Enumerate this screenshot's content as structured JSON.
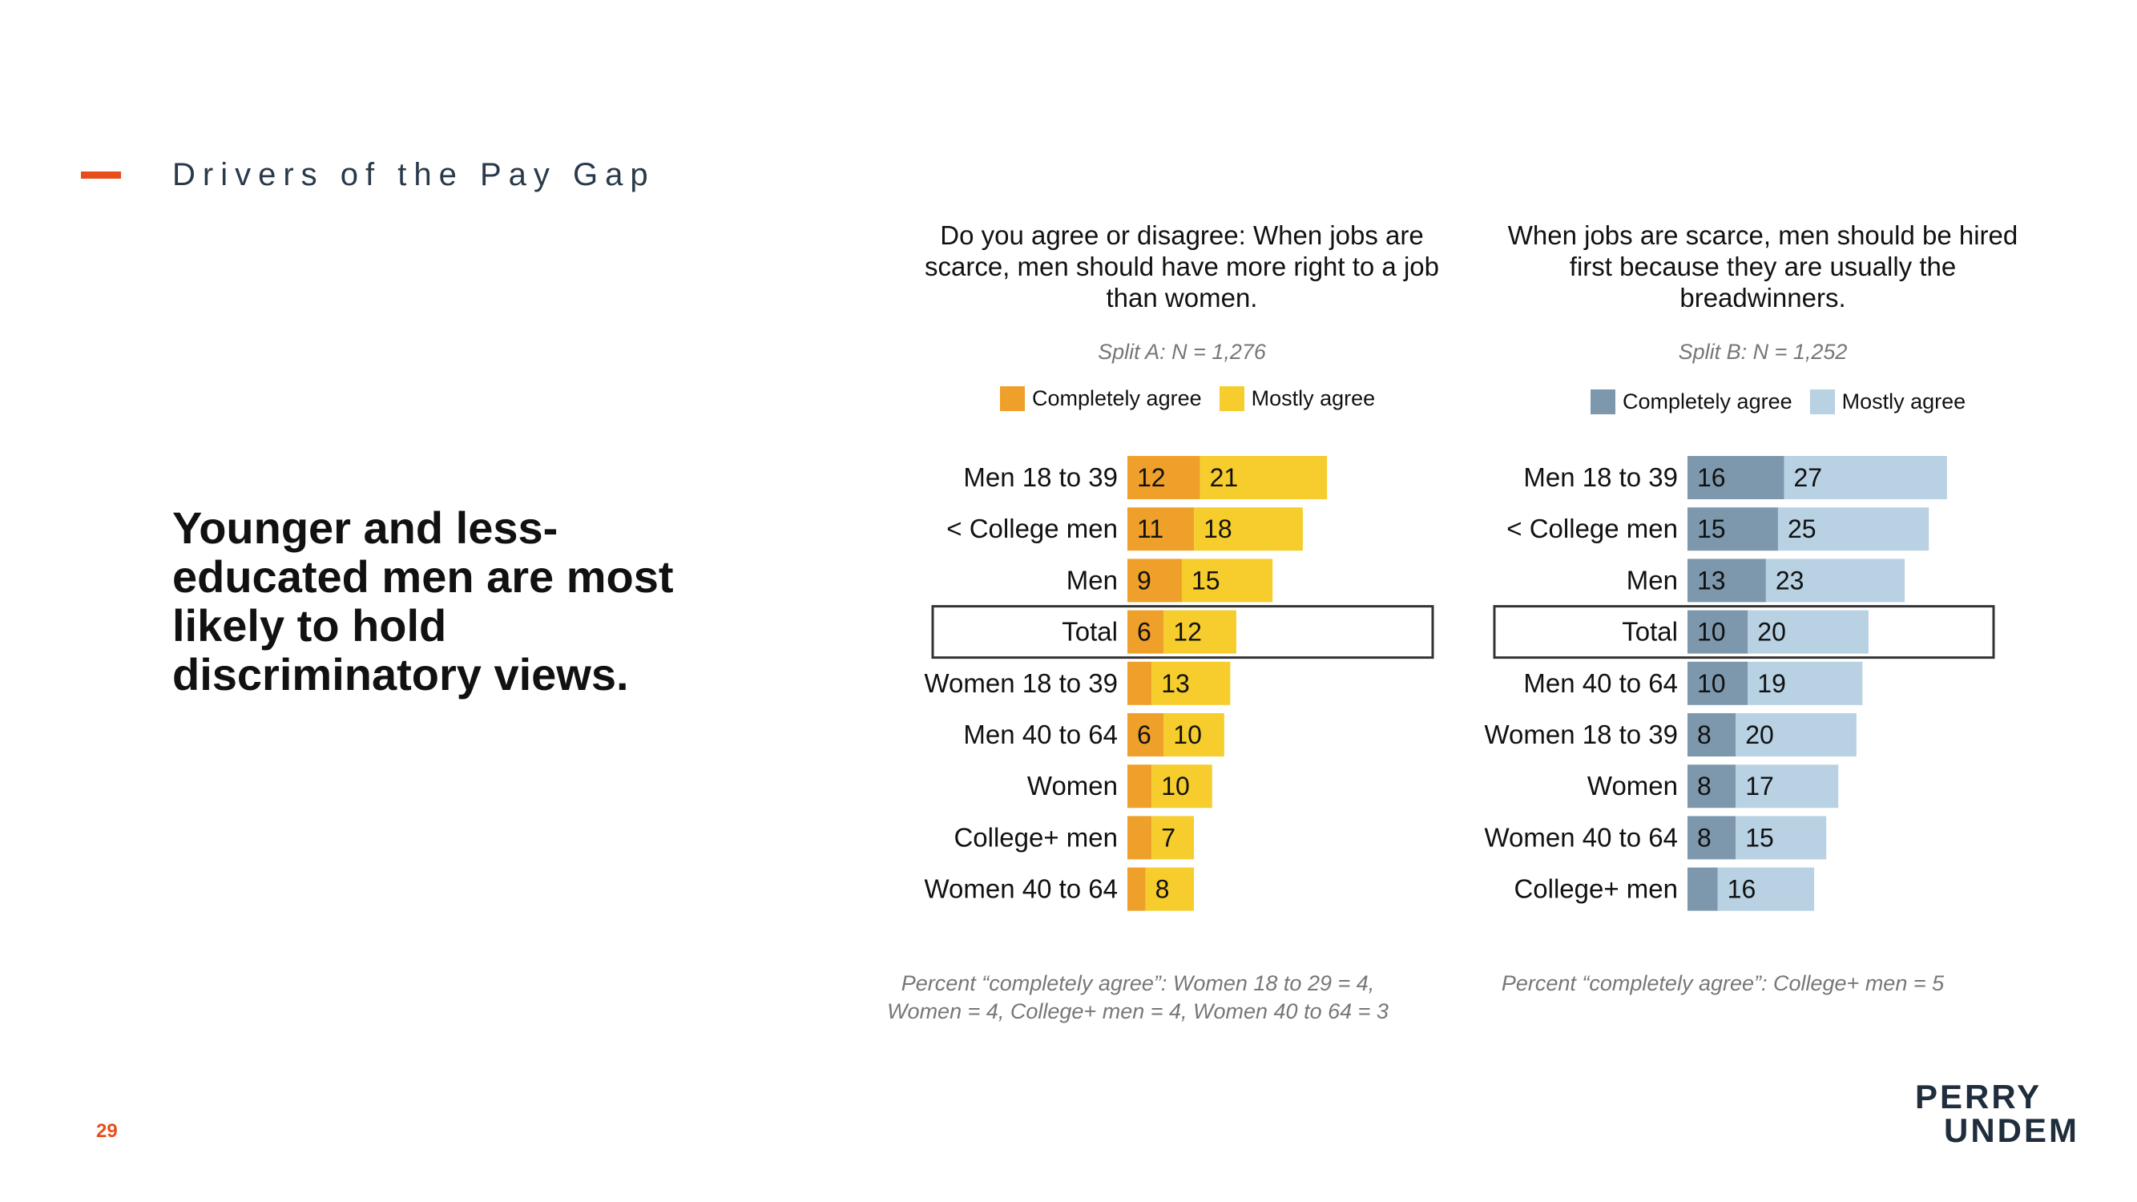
{
  "header": {
    "section_title": "Drivers of the Pay Gap"
  },
  "headline": "Younger and less-educated men are most likely to hold discriminatory views.",
  "page_number": "29",
  "logo": {
    "line1": "PERRY",
    "line2": "UNDEM"
  },
  "chart_data": [
    {
      "type": "bar",
      "orientation": "horizontal",
      "stacked": true,
      "title": "Do you agree or disagree: When jobs are scarce, men should have more right to a job than women.",
      "subtitle": "Split A: N = 1,276",
      "categories": [
        "Men 18 to 39",
        "< College men",
        "Men",
        "Total",
        "Women 18 to 39",
        "Men 40 to 64",
        "Women",
        "College+ men",
        "Women 40 to 64"
      ],
      "highlight": "Total",
      "series": [
        {
          "name": "Completely agree",
          "color": "#eea02a",
          "values": [
            12,
            11,
            9,
            6,
            4,
            6,
            4,
            4,
            3
          ],
          "labels": [
            "12",
            "11",
            "9",
            "6",
            "",
            "6",
            "",
            "",
            ""
          ]
        },
        {
          "name": "Mostly agree",
          "color": "#f6cd2c",
          "values": [
            21,
            18,
            15,
            12,
            13,
            10,
            10,
            7,
            8
          ],
          "labels": [
            "21",
            "18",
            "15",
            "12",
            "13",
            "10",
            "10",
            "7",
            "8"
          ]
        }
      ],
      "note": "Percent “completely agree”: Women 18 to 29 = 4, Women = 4, College+ men = 4, Women 40 to 64 = 3"
    },
    {
      "type": "bar",
      "orientation": "horizontal",
      "stacked": true,
      "title": "When jobs are scarce, men should be hired first because they are usually the breadwinners.",
      "subtitle": "Split B: N = 1,252",
      "categories": [
        "Men 18 to 39",
        "< College men",
        "Men",
        "Total",
        "Men 40 to 64",
        "Women 18 to 39",
        "Women",
        "Women 40 to 64",
        "College+ men"
      ],
      "highlight": "Total",
      "series": [
        {
          "name": "Completely agree",
          "color": "#7d98ad",
          "values": [
            16,
            15,
            13,
            10,
            10,
            8,
            8,
            8,
            5
          ],
          "labels": [
            "16",
            "15",
            "13",
            "10",
            "10",
            "8",
            "8",
            "8",
            ""
          ]
        },
        {
          "name": "Mostly agree",
          "color": "#b8d1e3",
          "values": [
            27,
            25,
            23,
            20,
            19,
            20,
            17,
            15,
            16
          ],
          "labels": [
            "27",
            "25",
            "23",
            "20",
            "19",
            "20",
            "17",
            "15",
            "16"
          ]
        }
      ],
      "note": "Percent “completely agree”: College+ men = 5"
    }
  ]
}
